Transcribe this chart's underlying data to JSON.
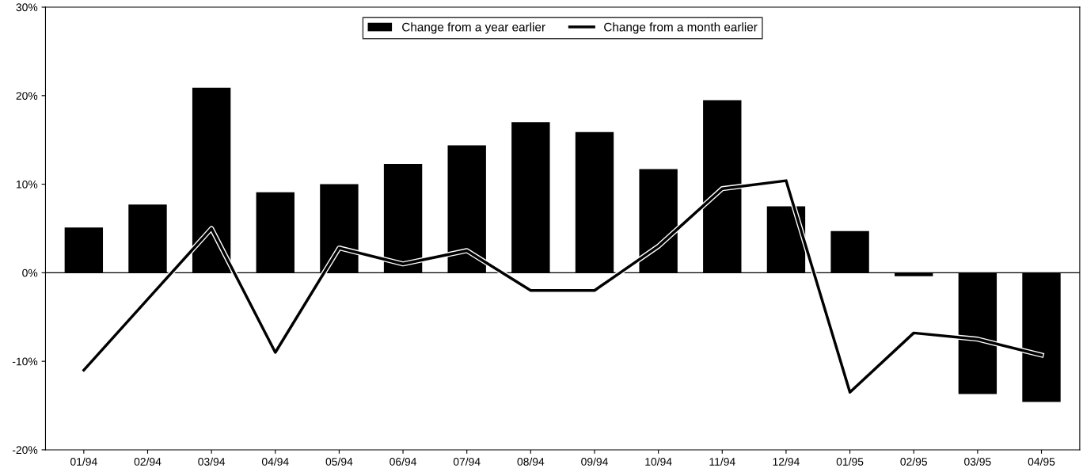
{
  "chart_data": {
    "type": "bar",
    "categories": [
      "01/94",
      "02/94",
      "03/94",
      "04/94",
      "05/94",
      "06/94",
      "07/94",
      "08/94",
      "09/94",
      "10/94",
      "11/94",
      "12/94",
      "01/95",
      "02/95",
      "03/95",
      "04/95"
    ],
    "series": [
      {
        "name": "Change from a year earlier",
        "color": "#000000",
        "values": [
          5.1,
          7.7,
          20.9,
          9.1,
          10.0,
          12.3,
          14.4,
          17.0,
          15.9,
          11.7,
          19.5,
          7.5,
          4.7,
          -0.4,
          -13.7,
          -14.6
        ]
      },
      {
        "name": "Change from a month earlier",
        "type": "line",
        "color": "#000000",
        "values": [
          -11.0,
          -3.0,
          5.0,
          -9.0,
          2.8,
          1.0,
          2.5,
          -2.0,
          -2.0,
          3.0,
          9.5,
          10.4,
          -13.5,
          -6.8,
          -7.5,
          -9.3
        ]
      }
    ],
    "ylim": [
      -20,
      30
    ],
    "yticks": [
      {
        "value": -20,
        "label": "-20%"
      },
      {
        "value": -10,
        "label": "-10%"
      },
      {
        "value": 0,
        "label": "0%"
      },
      {
        "value": 10,
        "label": "10%"
      },
      {
        "value": 20,
        "label": "20%"
      },
      {
        "value": 30,
        "label": "30%"
      }
    ],
    "ref_lines": [
      {
        "axis": "y",
        "value": 0,
        "color": "#000000"
      }
    ],
    "legend": "top",
    "grid": false
  }
}
